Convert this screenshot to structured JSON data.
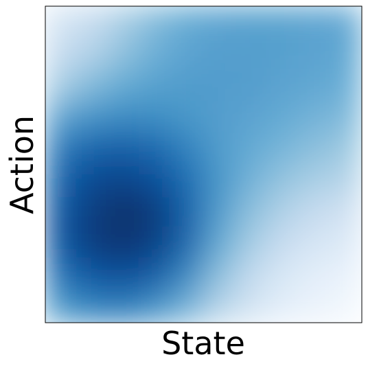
{
  "chart_data": {
    "type": "heatmap",
    "xlabel": "State",
    "ylabel": "Action",
    "colorscale": [
      "#f7fbff",
      "#deebf7",
      "#c6dbef",
      "#9ecae1",
      "#6baed6",
      "#4292c6",
      "#2171b5",
      "#08519c",
      "#08306b"
    ],
    "zlim": [
      0,
      1
    ],
    "z": [
      [
        0.18,
        0.25,
        0.35,
        0.45,
        0.52,
        0.55,
        0.56,
        0.56,
        0.55,
        0.54
      ],
      [
        0.25,
        0.32,
        0.42,
        0.5,
        0.55,
        0.57,
        0.57,
        0.56,
        0.55,
        0.53
      ],
      [
        0.35,
        0.45,
        0.52,
        0.56,
        0.58,
        0.58,
        0.57,
        0.55,
        0.53,
        0.5
      ],
      [
        0.55,
        0.62,
        0.65,
        0.64,
        0.6,
        0.57,
        0.55,
        0.52,
        0.48,
        0.45
      ],
      [
        0.72,
        0.8,
        0.82,
        0.78,
        0.68,
        0.58,
        0.52,
        0.47,
        0.42,
        0.38
      ],
      [
        0.8,
        0.9,
        0.92,
        0.88,
        0.76,
        0.6,
        0.48,
        0.4,
        0.34,
        0.3
      ],
      [
        0.85,
        0.95,
        1.0,
        0.95,
        0.8,
        0.58,
        0.42,
        0.32,
        0.25,
        0.2
      ],
      [
        0.85,
        0.95,
        0.98,
        0.93,
        0.78,
        0.52,
        0.35,
        0.24,
        0.17,
        0.13
      ],
      [
        0.75,
        0.85,
        0.88,
        0.82,
        0.65,
        0.42,
        0.26,
        0.16,
        0.1,
        0.07
      ],
      [
        0.6,
        0.68,
        0.7,
        0.62,
        0.48,
        0.3,
        0.18,
        0.1,
        0.06,
        0.03
      ]
    ]
  }
}
